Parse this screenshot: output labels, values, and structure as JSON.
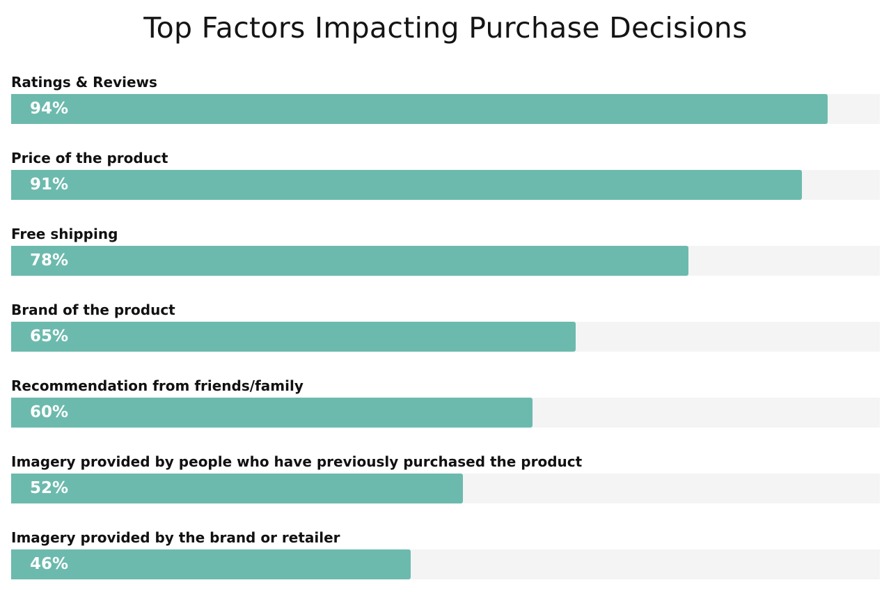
{
  "chart_data": {
    "type": "bar",
    "orientation": "horizontal",
    "title": "Top Factors Impacting Purchase Decisions",
    "categories": [
      "Ratings & Reviews",
      "Price of the product",
      "Free shipping",
      "Brand of the product",
      "Recommendation from friends/family",
      "Imagery provided by people who have previously purchased the product",
      "Imagery provided by the brand or retailer"
    ],
    "values": [
      94,
      91,
      78,
      65,
      60,
      52,
      46
    ],
    "value_labels": [
      "94%",
      "91%",
      "78%",
      "65%",
      "60%",
      "52%",
      "46%"
    ],
    "xlim": [
      0,
      100
    ],
    "xlabel": "",
    "ylabel": "",
    "grid": false,
    "legend": "none"
  },
  "colors": {
    "bar": "#6cbaad",
    "track": "#f4f4f4",
    "value_text": "#ffffff",
    "label_text": "#111111"
  }
}
